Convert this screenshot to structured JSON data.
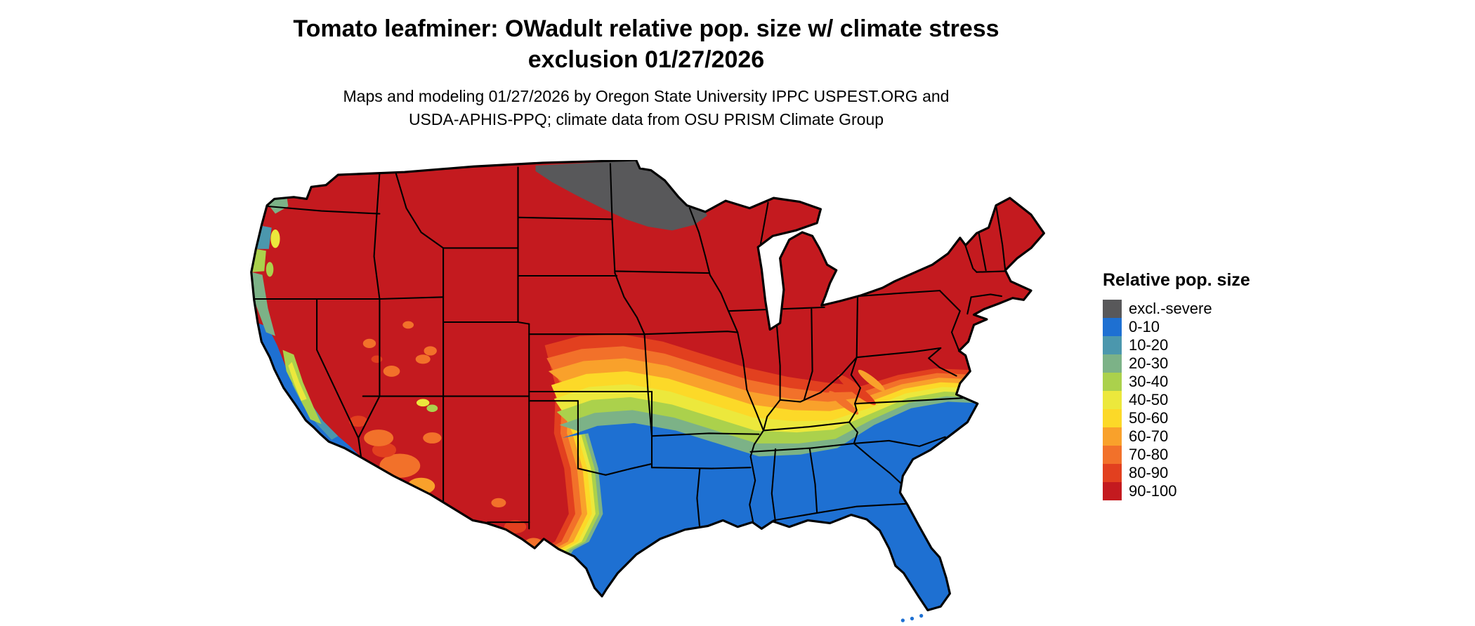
{
  "header": {
    "title_line1": "Tomato leafminer: OWadult relative pop. size w/ climate stress",
    "title_line2": "exclusion 01/27/2026",
    "subtitle_line1": "Maps and modeling 01/27/2026 by Oregon State University IPPC USPEST.ORG and",
    "subtitle_line2": "USDA-APHIS-PPQ; climate data from OSU PRISM Climate Group"
  },
  "map": {
    "outline_color": "#000000",
    "background": "#ffffff"
  },
  "legend": {
    "title": "Relative pop. size",
    "items": [
      {
        "key": "excl",
        "label": "excl.-severe",
        "color": "#58585a"
      },
      {
        "key": "c0",
        "label": "0-10",
        "color": "#1e70d2"
      },
      {
        "key": "c10",
        "label": "10-20",
        "color": "#4b97ad"
      },
      {
        "key": "c20",
        "label": "20-30",
        "color": "#7cb287"
      },
      {
        "key": "c30",
        "label": "30-40",
        "color": "#abd14c"
      },
      {
        "key": "c40",
        "label": "40-50",
        "color": "#ece83c"
      },
      {
        "key": "c50",
        "label": "50-60",
        "color": "#fcd928"
      },
      {
        "key": "c60",
        "label": "60-70",
        "color": "#f9a12b"
      },
      {
        "key": "c70",
        "label": "70-80",
        "color": "#f2712a"
      },
      {
        "key": "c80",
        "label": "80-90",
        "color": "#e2401f"
      },
      {
        "key": "c90",
        "label": "90-100",
        "color": "#c41a1f"
      }
    ]
  }
}
